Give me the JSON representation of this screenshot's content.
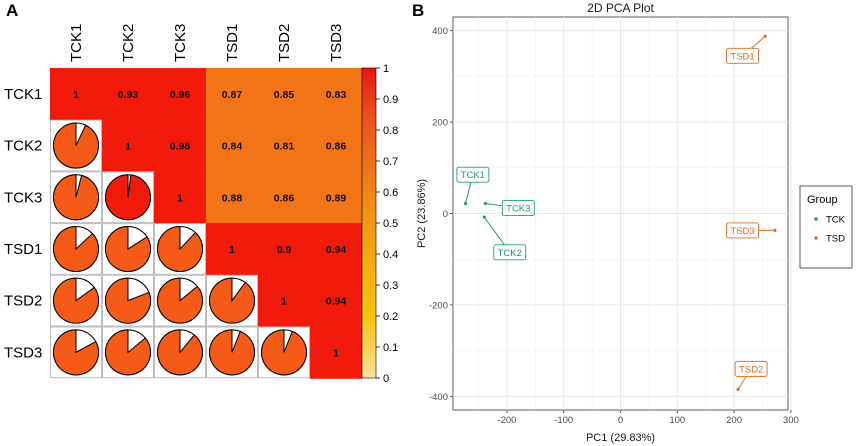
{
  "panels": {
    "a_letter": "A",
    "b_letter": "B"
  },
  "chart_data": [
    {
      "type": "heatmap",
      "title": "",
      "samples": [
        "TCK1",
        "TCK2",
        "TCK3",
        "TSD1",
        "TSD2",
        "TSD3"
      ],
      "matrix": [
        [
          1,
          0.93,
          0.96,
          0.87,
          0.85,
          0.83
        ],
        [
          0.93,
          1,
          0.98,
          0.84,
          0.81,
          0.86
        ],
        [
          0.96,
          0.98,
          1,
          0.88,
          0.86,
          0.89
        ],
        [
          0.87,
          0.84,
          0.88,
          1,
          0.9,
          0.94
        ],
        [
          0.85,
          0.81,
          0.86,
          0.9,
          1,
          0.94
        ],
        [
          0.83,
          0.86,
          0.89,
          0.94,
          0.94,
          1
        ]
      ],
      "labels_upper": [
        [
          "1",
          "0.93",
          "0.96",
          "0.87",
          "0.85",
          "0.83"
        ],
        [
          "",
          "1",
          "0.98",
          "0.84",
          "0.81",
          "0.86"
        ],
        [
          "",
          "",
          "1",
          "0.88",
          "0.86",
          "0.89"
        ],
        [
          "",
          "",
          "",
          "1",
          "0.9",
          "0.94"
        ],
        [
          "",
          "",
          "",
          "",
          "1",
          "0.94"
        ],
        [
          "",
          "",
          "",
          "",
          "",
          "1"
        ]
      ],
      "lower_triangle": "pie",
      "upper_triangle": "color-with-value",
      "colorbar": {
        "range": [
          0,
          1
        ],
        "ticks": [
          "0",
          "0.1",
          "0.2",
          "0.3",
          "0.4",
          "0.5",
          "0.6",
          "0.7",
          "0.8",
          "0.9",
          "1"
        ],
        "colors": [
          "#fbe39a",
          "#f4c20d",
          "#f2a20e",
          "#ef7a1b",
          "#ec4f20",
          "#e9150f"
        ]
      },
      "colors": {
        "high": "#f21a0a",
        "mid": "#f55a17",
        "low": "#f37416"
      }
    },
    {
      "type": "scatter",
      "title": "2D PCA Plot",
      "xlabel": "PC1 (29.83%)",
      "ylabel": "PC2 (23.86%)",
      "xlim": [
        -295,
        295
      ],
      "ylim": [
        -430,
        430
      ],
      "xticks": [
        "-200",
        "-100",
        "0",
        "100",
        "200",
        "300"
      ],
      "xtick_values": [
        -200,
        -100,
        0,
        100,
        200,
        300
      ],
      "yticks": [
        "-400",
        "-200",
        "0",
        "200",
        "400"
      ],
      "ytick_values": [
        -400,
        -200,
        0,
        200,
        400
      ],
      "legend": {
        "title": "Group",
        "entries": [
          "TCK",
          "TSD"
        ],
        "placement": "right"
      },
      "series": [
        {
          "name": "TCK",
          "color": "#1d9e77",
          "points": [
            {
              "label": "TCK1",
              "x": -273,
              "y": 22,
              "lx": -260,
              "ly": 85
            },
            {
              "label": "TCK2",
              "x": -240,
              "y": -8,
              "lx": -195,
              "ly": -85
            },
            {
              "label": "TCK3",
              "x": -238,
              "y": 22,
              "lx": -180,
              "ly": 12
            }
          ]
        },
        {
          "name": "TSD",
          "color": "#e06c1f",
          "points": [
            {
              "label": "TSD1",
              "x": 255,
              "y": 388,
              "lx": 215,
              "ly": 345
            },
            {
              "label": "TSD2",
              "x": 207,
              "y": -385,
              "lx": 230,
              "ly": -340
            },
            {
              "label": "TSD3",
              "x": 272,
              "y": -37,
              "lx": 215,
              "ly": -37
            }
          ]
        }
      ]
    }
  ]
}
